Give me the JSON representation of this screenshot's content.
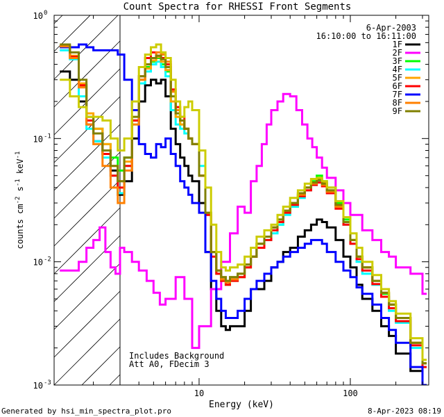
{
  "footer": {
    "left": "Generated by hsi_min_spectra_plot.pro",
    "right": "8-Apr-2023 08:19"
  },
  "annotations": {
    "date": "6-Apr-2003",
    "time_range": "16:10:00 to 16:11:00",
    "note_line1": "Includes Background",
    "note_line2": "Att A0, FDecim 3"
  },
  "chart_data": {
    "type": "line",
    "title": "Count Spectra for RHESSI Front Segments",
    "xlabel": "Energy (keV)",
    "ylabel": "counts cm-2 s-1 keV-1",
    "x_scale": "log",
    "y_scale": "log",
    "xlim": [
      1.1,
      330
    ],
    "ylim": [
      0.001,
      1.0
    ],
    "x_ticks": [
      {
        "value": 10,
        "label": "10"
      },
      {
        "value": 100,
        "label": "100"
      }
    ],
    "y_ticks": [
      {
        "value": 0.001,
        "label": "10",
        "exp": "-3"
      },
      {
        "value": 0.01,
        "label": "10",
        "exp": "-2"
      },
      {
        "value": 0.1,
        "label": "10",
        "exp": "-1"
      },
      {
        "value": 1,
        "label": "10",
        "exp": "0"
      }
    ],
    "hatched_region": {
      "x_max": 3.0
    },
    "grid": false,
    "legend_position": "top-right",
    "series": [
      {
        "name": "1F",
        "color": "#000000",
        "x": [
          1.2,
          1.4,
          1.6,
          1.8,
          2.0,
          2.3,
          2.6,
          2.9,
          3.2,
          3.6,
          4.0,
          4.4,
          4.8,
          5.2,
          5.6,
          6.0,
          6.5,
          7.0,
          7.5,
          8.0,
          8.5,
          9.0,
          10,
          11,
          12,
          13,
          14,
          15,
          16,
          18,
          20,
          22,
          24,
          27,
          30,
          33,
          36,
          40,
          45,
          50,
          55,
          60,
          65,
          70,
          80,
          90,
          100,
          110,
          120,
          140,
          160,
          180,
          200,
          250,
          300
        ],
        "y": [
          0.35,
          0.3,
          0.2,
          0.13,
          0.095,
          0.075,
          0.055,
          0.035,
          0.045,
          0.1,
          0.2,
          0.27,
          0.3,
          0.28,
          0.3,
          0.22,
          0.12,
          0.09,
          0.07,
          0.06,
          0.05,
          0.045,
          0.03,
          0.012,
          0.006,
          0.004,
          0.003,
          0.0028,
          0.003,
          0.003,
          0.004,
          0.006,
          0.006,
          0.007,
          0.009,
          0.01,
          0.012,
          0.013,
          0.016,
          0.018,
          0.02,
          0.022,
          0.021,
          0.019,
          0.015,
          0.011,
          0.009,
          0.0065,
          0.005,
          0.004,
          0.003,
          0.0025,
          0.0018,
          0.0013,
          0.001
        ]
      },
      {
        "name": "2F",
        "color": "#ff00ff",
        "x": [
          1.2,
          1.4,
          1.6,
          1.8,
          2.0,
          2.2,
          2.4,
          2.6,
          2.8,
          3.0,
          3.2,
          3.6,
          4.0,
          4.5,
          5.0,
          5.5,
          6.0,
          7.0,
          8.0,
          9.0,
          10,
          12,
          14,
          16,
          18,
          20,
          22,
          24,
          26,
          28,
          30,
          33,
          36,
          40,
          44,
          48,
          52,
          56,
          60,
          65,
          70,
          80,
          90,
          100,
          120,
          140,
          160,
          180,
          200,
          250,
          300
        ],
        "y": [
          0.0085,
          0.0085,
          0.01,
          0.013,
          0.015,
          0.019,
          0.012,
          0.009,
          0.008,
          0.013,
          0.012,
          0.01,
          0.0085,
          0.007,
          0.0056,
          0.0045,
          0.005,
          0.0075,
          0.005,
          0.002,
          0.003,
          0.006,
          0.01,
          0.017,
          0.028,
          0.025,
          0.045,
          0.06,
          0.09,
          0.13,
          0.17,
          0.2,
          0.23,
          0.22,
          0.17,
          0.13,
          0.1,
          0.085,
          0.07,
          0.058,
          0.048,
          0.038,
          0.03,
          0.024,
          0.018,
          0.015,
          0.012,
          0.011,
          0.009,
          0.008,
          0.0055
        ]
      },
      {
        "name": "3F",
        "color": "#00ff00",
        "x": [
          1.2,
          1.4,
          1.6,
          1.8,
          2.0,
          2.3,
          2.6,
          2.9,
          3.2,
          3.6,
          4.0,
          4.4,
          4.8,
          5.2,
          5.6,
          6.0,
          6.5,
          7.0,
          7.5,
          8.0,
          8.5,
          9.0,
          10,
          11,
          12,
          13,
          14,
          15,
          16,
          18,
          20,
          22,
          24,
          27,
          30,
          33,
          36,
          40,
          45,
          50,
          55,
          60,
          65,
          70,
          80,
          90,
          100,
          110,
          120,
          140,
          160,
          180,
          200,
          250,
          300
        ],
        "y": [
          0.55,
          0.45,
          0.27,
          0.15,
          0.12,
          0.09,
          0.07,
          0.055,
          0.07,
          0.14,
          0.3,
          0.38,
          0.42,
          0.45,
          0.4,
          0.35,
          0.2,
          0.15,
          0.13,
          0.12,
          0.1,
          0.09,
          0.05,
          0.025,
          0.012,
          0.008,
          0.007,
          0.0065,
          0.007,
          0.0075,
          0.009,
          0.011,
          0.014,
          0.015,
          0.018,
          0.02,
          0.025,
          0.028,
          0.035,
          0.04,
          0.045,
          0.05,
          0.045,
          0.04,
          0.03,
          0.022,
          0.015,
          0.011,
          0.009,
          0.007,
          0.0055,
          0.0045,
          0.0035,
          0.0022,
          0.0015
        ]
      },
      {
        "name": "4F",
        "color": "#00ffff",
        "x": [
          1.2,
          1.4,
          1.6,
          1.8,
          2.0,
          2.3,
          2.6,
          2.9,
          3.2,
          3.6,
          4.0,
          4.4,
          4.8,
          5.2,
          5.6,
          6.0,
          6.5,
          7.0,
          7.5,
          8.0,
          8.5,
          9.0,
          10,
          11,
          12,
          13,
          14,
          15,
          16,
          18,
          20,
          22,
          24,
          27,
          30,
          33,
          36,
          40,
          45,
          50,
          55,
          60,
          65,
          70,
          80,
          90,
          100,
          110,
          120,
          140,
          160,
          180,
          200,
          250,
          300
        ],
        "y": [
          0.52,
          0.44,
          0.22,
          0.12,
          0.095,
          0.07,
          0.05,
          0.036,
          0.06,
          0.13,
          0.28,
          0.35,
          0.4,
          0.42,
          0.38,
          0.32,
          0.17,
          0.13,
          0.12,
          0.11,
          0.1,
          0.09,
          0.06,
          0.025,
          0.012,
          0.0085,
          0.0075,
          0.007,
          0.0075,
          0.008,
          0.0095,
          0.011,
          0.013,
          0.015,
          0.017,
          0.02,
          0.024,
          0.028,
          0.033,
          0.038,
          0.042,
          0.045,
          0.042,
          0.037,
          0.028,
          0.02,
          0.014,
          0.01,
          0.008,
          0.0065,
          0.0052,
          0.004,
          0.0032,
          0.002,
          0.0014
        ]
      },
      {
        "name": "5F",
        "color": "#ffa500",
        "x": [
          1.2,
          1.4,
          1.6,
          1.8,
          2.0,
          2.3,
          2.6,
          2.9,
          3.2,
          3.6,
          4.0,
          4.4,
          4.8,
          5.2,
          5.6,
          6.0,
          6.5,
          7.0,
          7.5,
          8.0,
          8.5,
          9.0,
          10,
          11,
          12,
          13,
          14,
          15,
          16,
          18,
          20,
          22,
          24,
          27,
          30,
          33,
          36,
          40,
          45,
          50,
          55,
          60,
          65,
          70,
          80,
          90,
          100,
          110,
          120,
          140,
          160,
          180,
          200,
          250,
          300
        ],
        "y": [
          0.56,
          0.47,
          0.28,
          0.16,
          0.12,
          0.09,
          0.06,
          0.045,
          0.065,
          0.14,
          0.3,
          0.37,
          0.43,
          0.46,
          0.42,
          0.36,
          0.2,
          0.15,
          0.13,
          0.12,
          0.1,
          0.09,
          0.05,
          0.024,
          0.012,
          0.0085,
          0.0075,
          0.007,
          0.0075,
          0.008,
          0.0095,
          0.011,
          0.014,
          0.016,
          0.019,
          0.022,
          0.026,
          0.03,
          0.036,
          0.04,
          0.044,
          0.047,
          0.044,
          0.038,
          0.029,
          0.021,
          0.015,
          0.011,
          0.009,
          0.007,
          0.0056,
          0.0045,
          0.0035,
          0.0022,
          0.0015
        ]
      },
      {
        "name": "6F",
        "color": "#ff0000",
        "x": [
          1.2,
          1.4,
          1.6,
          1.8,
          2.0,
          2.3,
          2.6,
          2.9,
          3.2,
          3.6,
          4.0,
          4.4,
          4.8,
          5.2,
          5.6,
          6.0,
          6.5,
          7.0,
          7.5,
          8.0,
          8.5,
          9.0,
          10,
          11,
          12,
          13,
          14,
          15,
          16,
          18,
          20,
          22,
          24,
          27,
          30,
          33,
          36,
          40,
          45,
          50,
          55,
          60,
          65,
          70,
          80,
          90,
          100,
          110,
          120,
          140,
          160,
          180,
          200,
          250,
          300
        ],
        "y": [
          0.56,
          0.46,
          0.27,
          0.14,
          0.11,
          0.075,
          0.05,
          0.04,
          0.06,
          0.14,
          0.32,
          0.45,
          0.5,
          0.47,
          0.45,
          0.4,
          0.25,
          0.18,
          0.15,
          0.12,
          0.1,
          0.09,
          0.05,
          0.024,
          0.011,
          0.008,
          0.007,
          0.0065,
          0.007,
          0.0075,
          0.009,
          0.011,
          0.013,
          0.015,
          0.018,
          0.021,
          0.025,
          0.029,
          0.034,
          0.038,
          0.042,
          0.044,
          0.041,
          0.036,
          0.027,
          0.02,
          0.014,
          0.0105,
          0.0085,
          0.0066,
          0.0052,
          0.0042,
          0.0033,
          0.0021,
          0.0014
        ]
      },
      {
        "name": "7F",
        "color": "#0000ff",
        "x": [
          1.2,
          1.4,
          1.6,
          1.8,
          2.0,
          2.3,
          2.6,
          2.9,
          3.2,
          3.6,
          4.0,
          4.4,
          4.8,
          5.2,
          5.6,
          6.0,
          6.5,
          7.0,
          7.5,
          8.0,
          8.5,
          9.0,
          10,
          11,
          12,
          13,
          14,
          15,
          16,
          18,
          20,
          22,
          24,
          27,
          30,
          33,
          36,
          40,
          45,
          50,
          55,
          60,
          65,
          70,
          80,
          90,
          100,
          110,
          120,
          140,
          160,
          180,
          200,
          250,
          300
        ],
        "y": [
          0.55,
          0.55,
          0.58,
          0.55,
          0.52,
          0.52,
          0.52,
          0.48,
          0.3,
          0.17,
          0.09,
          0.075,
          0.07,
          0.09,
          0.085,
          0.1,
          0.075,
          0.06,
          0.045,
          0.04,
          0.035,
          0.03,
          0.025,
          0.012,
          0.007,
          0.005,
          0.004,
          0.0035,
          0.0035,
          0.004,
          0.005,
          0.006,
          0.007,
          0.008,
          0.009,
          0.01,
          0.011,
          0.012,
          0.013,
          0.014,
          0.015,
          0.015,
          0.014,
          0.012,
          0.01,
          0.0085,
          0.0075,
          0.0062,
          0.0055,
          0.0045,
          0.0035,
          0.0028,
          0.0022,
          0.0014,
          0.001
        ]
      },
      {
        "name": "8F",
        "color": "#ff8000",
        "x": [
          1.2,
          1.4,
          1.6,
          1.8,
          2.0,
          2.3,
          2.6,
          2.9,
          3.2,
          3.6,
          4.0,
          4.4,
          4.8,
          5.2,
          5.6,
          6.0,
          6.5,
          7.0,
          7.5,
          8.0,
          8.5,
          9.0,
          10,
          11,
          12,
          13,
          14,
          15,
          16,
          18,
          20,
          22,
          24,
          27,
          30,
          33,
          36,
          40,
          45,
          50,
          55,
          60,
          65,
          70,
          80,
          90,
          100,
          110,
          120,
          140,
          160,
          180,
          200,
          250,
          300
        ],
        "y": [
          0.56,
          0.45,
          0.26,
          0.13,
          0.09,
          0.06,
          0.04,
          0.03,
          0.055,
          0.13,
          0.3,
          0.4,
          0.45,
          0.5,
          0.48,
          0.42,
          0.24,
          0.17,
          0.14,
          0.12,
          0.1,
          0.09,
          0.05,
          0.025,
          0.012,
          0.0085,
          0.0072,
          0.0068,
          0.0072,
          0.008,
          0.0095,
          0.011,
          0.014,
          0.016,
          0.019,
          0.022,
          0.026,
          0.03,
          0.035,
          0.04,
          0.043,
          0.046,
          0.042,
          0.037,
          0.028,
          0.021,
          0.015,
          0.011,
          0.009,
          0.007,
          0.0056,
          0.0045,
          0.0035,
          0.0022,
          0.0015
        ]
      },
      {
        "name": "9F",
        "color": "#808000",
        "x": [
          1.2,
          1.4,
          1.6,
          1.8,
          2.0,
          2.3,
          2.6,
          2.9,
          3.2,
          3.6,
          4.0,
          4.4,
          4.8,
          5.2,
          5.6,
          6.0,
          6.5,
          7.0,
          7.5,
          8.0,
          8.5,
          9.0,
          10,
          11,
          12,
          13,
          14,
          15,
          16,
          18,
          20,
          22,
          24,
          27,
          30,
          33,
          36,
          40,
          45,
          50,
          55,
          60,
          65,
          70,
          80,
          90,
          100,
          110,
          120,
          140,
          160,
          180,
          200,
          250,
          300
        ],
        "y": [
          0.58,
          0.5,
          0.3,
          0.15,
          0.11,
          0.08,
          0.06,
          0.045,
          0.07,
          0.15,
          0.32,
          0.4,
          0.45,
          0.47,
          0.44,
          0.38,
          0.22,
          0.16,
          0.14,
          0.12,
          0.1,
          0.09,
          0.05,
          0.025,
          0.012,
          0.0085,
          0.0075,
          0.007,
          0.0075,
          0.008,
          0.0095,
          0.011,
          0.014,
          0.016,
          0.019,
          0.022,
          0.026,
          0.03,
          0.036,
          0.04,
          0.044,
          0.046,
          0.043,
          0.038,
          0.029,
          0.021,
          0.015,
          0.011,
          0.009,
          0.007,
          0.0056,
          0.0045,
          0.0035,
          0.0022,
          0.0015
        ]
      },
      {
        "name": "",
        "color": "#cccc00",
        "x": [
          1.2,
          1.4,
          1.6,
          1.8,
          2.0,
          2.3,
          2.6,
          2.9,
          3.2,
          3.6,
          4.0,
          4.4,
          4.8,
          5.2,
          5.6,
          6.0,
          6.5,
          7.0,
          7.5,
          8.0,
          8.5,
          9.0,
          10,
          11,
          12,
          13,
          14,
          15,
          16,
          18,
          20,
          22,
          24,
          27,
          30,
          33,
          36,
          40,
          45,
          50,
          55,
          60,
          65,
          70,
          80,
          90,
          100,
          110,
          120,
          140,
          160,
          180,
          200,
          250,
          300
        ],
        "y": [
          0.3,
          0.22,
          0.18,
          0.15,
          0.15,
          0.14,
          0.1,
          0.08,
          0.1,
          0.2,
          0.38,
          0.48,
          0.55,
          0.58,
          0.5,
          0.45,
          0.3,
          0.2,
          0.15,
          0.18,
          0.2,
          0.17,
          0.08,
          0.04,
          0.02,
          0.012,
          0.009,
          0.0085,
          0.009,
          0.0095,
          0.011,
          0.013,
          0.016,
          0.018,
          0.02,
          0.024,
          0.028,
          0.033,
          0.038,
          0.043,
          0.047,
          0.048,
          0.045,
          0.04,
          0.031,
          0.023,
          0.017,
          0.013,
          0.01,
          0.0078,
          0.006,
          0.0048,
          0.0038,
          0.0024,
          0.0016
        ]
      }
    ]
  }
}
